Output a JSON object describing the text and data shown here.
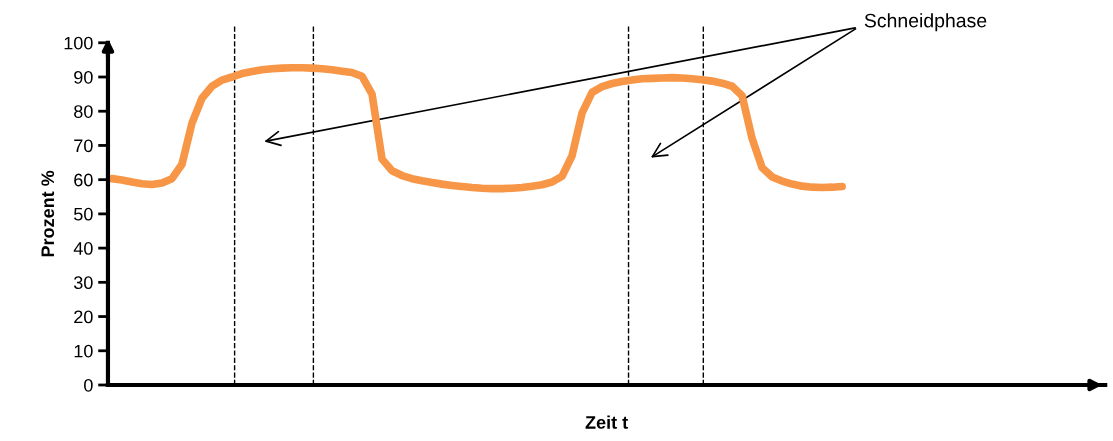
{
  "chart_data": {
    "type": "line",
    "xlabel": "Zeit t",
    "ylabel": "Prozent %",
    "categories": [
      null,
      null,
      null,
      null,
      null,
      null,
      null,
      null,
      null,
      null,
      null,
      null,
      null,
      null,
      null,
      null,
      null,
      null,
      null,
      null,
      null,
      null,
      null,
      null,
      null,
      null,
      null,
      null,
      null,
      null,
      null,
      null,
      null,
      null,
      null,
      null,
      null,
      null,
      null,
      null,
      null,
      null,
      null,
      null,
      null,
      null,
      null,
      null,
      null,
      null,
      null,
      null,
      null,
      null,
      null,
      null,
      null,
      null,
      null,
      null,
      null,
      null,
      null,
      null,
      null,
      null,
      null,
      null,
      null,
      null,
      null,
      null,
      null,
      null,
      null,
      null,
      null,
      null,
      null,
      null,
      null,
      null,
      null,
      null,
      null,
      null,
      null,
      null,
      null,
      null,
      null,
      null,
      null,
      null,
      null,
      null,
      null,
      null,
      null,
      null
    ],
    "series": [
      {
        "color": "#f79646",
        "values": [
          60.3,
          59.9,
          59.3,
          58.8,
          58.6,
          59.0,
          60.3,
          64.5,
          76.5,
          83.8,
          87.3,
          89.1,
          90.0,
          91.0,
          91.6,
          92.1,
          92.4,
          92.6,
          92.7,
          92.7,
          92.6,
          92.4,
          92.1,
          91.7,
          91.3,
          90.2,
          85,
          66,
          62.6,
          61.2,
          60.3,
          59.7,
          59.2,
          58.7,
          58.3,
          58,
          57.7,
          57.5,
          57.4,
          57.4,
          57.5,
          57.7,
          58.1,
          58.5,
          59.3,
          61,
          67,
          79.5,
          85.5,
          87.2,
          88.1,
          88.7,
          89.1,
          89.5,
          89.6,
          89.7,
          89.8,
          89.7,
          89.5,
          89.2,
          88.8,
          88.2,
          87.3,
          84.5,
          72,
          63.5,
          60.8,
          59.6,
          58.7,
          58.1,
          57.8,
          57.7,
          57.8,
          58.0,
          null,
          null,
          null,
          null,
          null,
          null,
          null,
          null,
          null,
          null,
          null,
          null,
          null,
          null,
          null,
          null,
          null,
          null,
          null,
          null,
          null,
          null,
          null,
          null,
          null,
          null
        ]
      }
    ],
    "ylim": [
      0,
      100
    ],
    "yticks": [
      0,
      10,
      20,
      30,
      40,
      50,
      60,
      70,
      80,
      90,
      100
    ],
    "annotations": [
      "Schneidphase"
    ],
    "tick_labels": "y",
    "grid": false,
    "legend": false,
    "marker": "none",
    "line_style": "solid"
  }
}
